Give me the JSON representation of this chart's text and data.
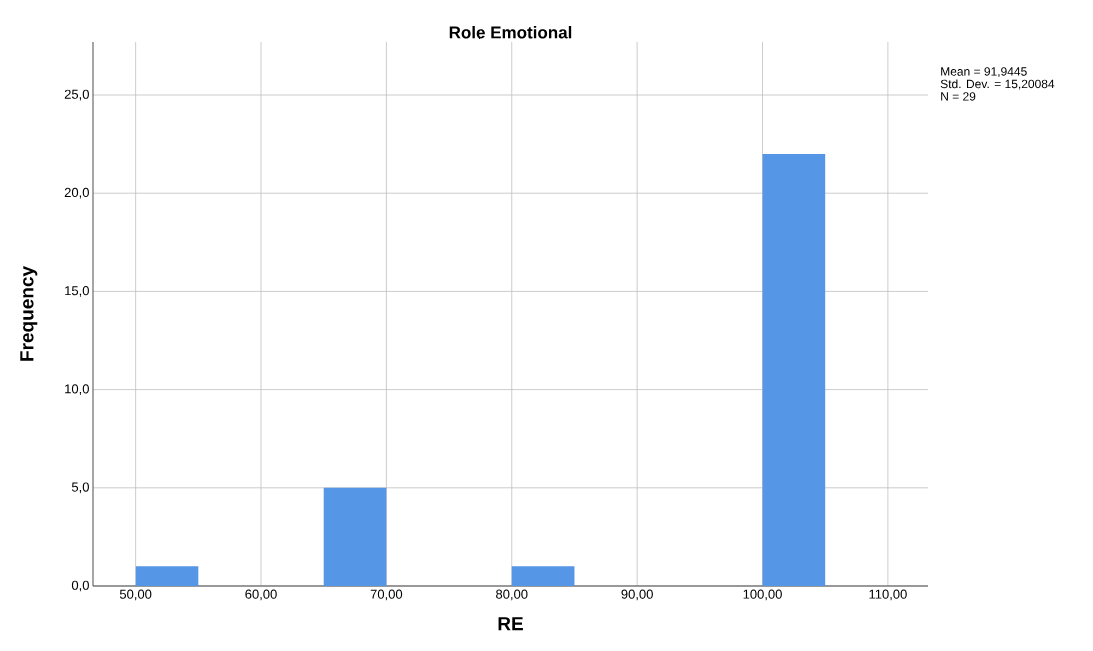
{
  "chart_data": {
    "type": "histogram",
    "title": "Role Emotional",
    "xlabel": "RE",
    "ylabel": "Frequency",
    "bins": [
      50,
      55,
      60,
      65,
      70,
      75,
      80,
      85,
      90,
      95,
      100,
      105
    ],
    "values": [
      1,
      0,
      0,
      5,
      0,
      0,
      1,
      0,
      0,
      0,
      22
    ],
    "color": "#5596e6",
    "xlim": [
      46.6,
      113.2
    ],
    "ylim": [
      0,
      27.7
    ],
    "xticks": [
      {
        "value": 50,
        "label": "50,00"
      },
      {
        "value": 60,
        "label": "60,00"
      },
      {
        "value": 70,
        "label": "70,00"
      },
      {
        "value": 80,
        "label": "80,00"
      },
      {
        "value": 90,
        "label": "90,00"
      },
      {
        "value": 100,
        "label": "100,00"
      },
      {
        "value": 110,
        "label": "110,00"
      }
    ],
    "yticks": [
      {
        "value": 0,
        "label": "0,0"
      },
      {
        "value": 5,
        "label": "5,0"
      },
      {
        "value": 10,
        "label": "10,0"
      },
      {
        "value": 15,
        "label": "15,0"
      },
      {
        "value": 20,
        "label": "20,0"
      },
      {
        "value": 25,
        "label": "25,0"
      }
    ],
    "grid": true,
    "annotations": [
      "Mean = 91,9445",
      "Std. Dev. = 15,20084",
      "N = 29"
    ]
  }
}
